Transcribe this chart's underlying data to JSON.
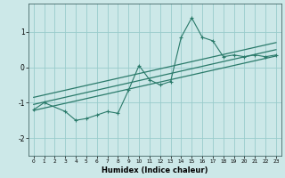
{
  "xlabel": "Humidex (Indice chaleur)",
  "background_color": "#cce8e8",
  "grid_color": "#99cccc",
  "line_color": "#2a7a6a",
  "xlim": [
    -0.5,
    23.5
  ],
  "ylim": [
    -2.5,
    1.8
  ],
  "xticks": [
    0,
    1,
    2,
    3,
    4,
    5,
    6,
    7,
    8,
    9,
    10,
    11,
    12,
    13,
    14,
    15,
    16,
    17,
    18,
    19,
    20,
    21,
    22,
    23
  ],
  "yticks": [
    -2,
    -1,
    0,
    1
  ],
  "x_data": [
    0,
    1,
    3,
    4,
    5,
    6,
    7,
    8,
    9,
    10,
    11,
    12,
    13,
    14,
    15,
    16,
    17,
    18,
    19,
    20,
    21,
    22,
    23
  ],
  "y_data": [
    -1.2,
    -1.0,
    -1.25,
    -1.5,
    -1.45,
    -1.35,
    -1.25,
    -1.3,
    -0.65,
    0.05,
    -0.35,
    -0.5,
    -0.4,
    0.85,
    1.4,
    0.85,
    0.75,
    0.3,
    0.35,
    0.3,
    0.35,
    0.3,
    0.35
  ],
  "line1_x": [
    0,
    23
  ],
  "line1_y": [
    -1.05,
    0.5
  ],
  "line2_x": [
    0,
    23
  ],
  "line2_y": [
    -0.85,
    0.7
  ],
  "line3_x": [
    0,
    23
  ],
  "line3_y": [
    -1.22,
    0.32
  ]
}
